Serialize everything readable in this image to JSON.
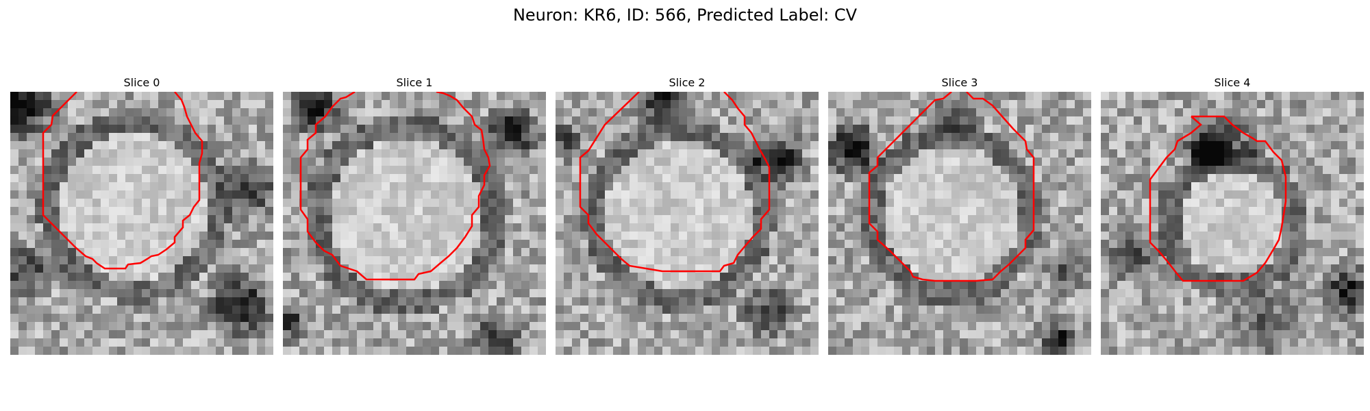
{
  "figure": {
    "title": "Neuron: KR6, ID: 566, Predicted Label: CV"
  },
  "slices": [
    {
      "title": "Slice 0"
    },
    {
      "title": "Slice 1"
    },
    {
      "title": "Slice 2"
    },
    {
      "title": "Slice 3"
    },
    {
      "title": "Slice 4"
    }
  ],
  "colors": {
    "contour": "#ff0000",
    "background": "#ffffff",
    "colormap": "grayscale"
  }
}
